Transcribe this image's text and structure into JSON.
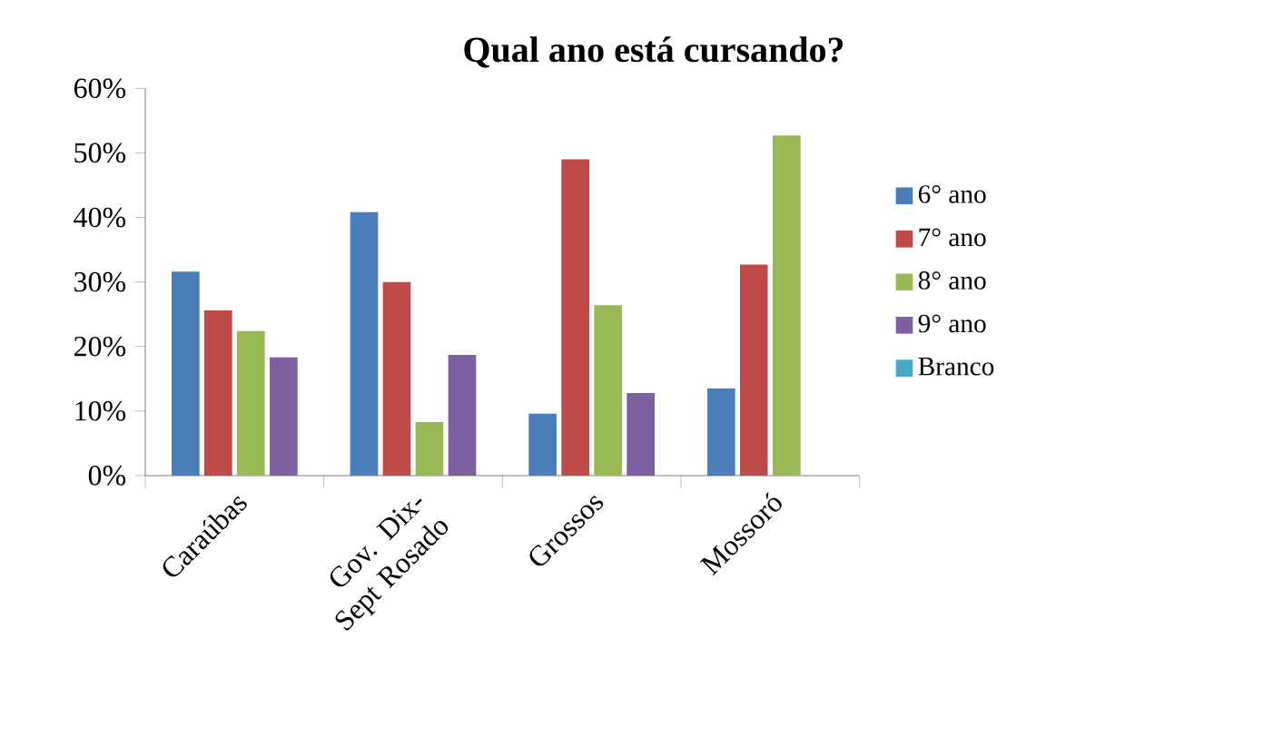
{
  "chart_data": {
    "type": "bar",
    "title": "Qual ano está cursando?",
    "categories": [
      "Caraúbas",
      "Gov. Dix-Sept Rosado",
      "Grossos",
      "Mossoró"
    ],
    "series": [
      {
        "name": "6° ano",
        "color": "#4a7ebb",
        "values": [
          31.6,
          40.8,
          9.6,
          13.5
        ]
      },
      {
        "name": "7° ano",
        "color": "#be4b48",
        "values": [
          25.6,
          30,
          49,
          32.7
        ]
      },
      {
        "name": "8° ano",
        "color": "#98b954",
        "values": [
          22.4,
          8.3,
          26.4,
          52.7
        ]
      },
      {
        "name": "9° ano",
        "color": "#7d60a0",
        "values": [
          18.3,
          18.7,
          12.8,
          null
        ]
      },
      {
        "name": "Branco",
        "color": "#46aac5",
        "values": [
          null,
          null,
          null,
          null
        ]
      }
    ],
    "ylim": [
      0,
      60
    ],
    "yticks": [
      {
        "value": 0,
        "label": "0%"
      },
      {
        "value": 10,
        "label": "10%"
      },
      {
        "value": 20,
        "label": "20%"
      },
      {
        "value": 30,
        "label": "30%"
      },
      {
        "value": 40,
        "label": "40%"
      },
      {
        "value": 50,
        "label": "50%"
      },
      {
        "value": 60,
        "label": "60%"
      }
    ],
    "legend": "right",
    "grid": false
  }
}
